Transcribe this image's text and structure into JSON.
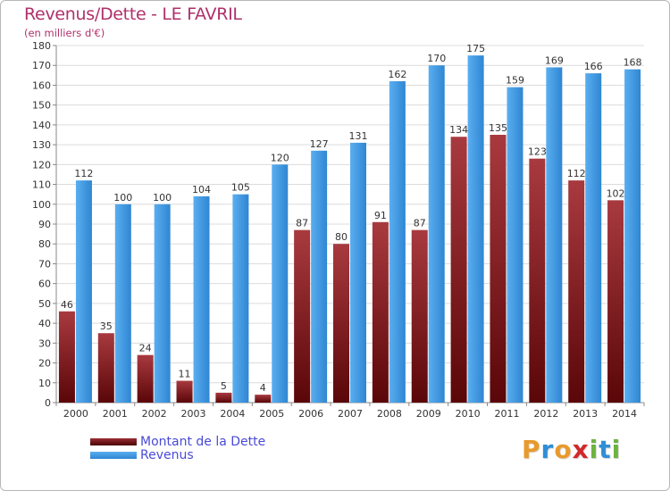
{
  "title": "Revenus/Dette - LE FAVRIL",
  "subtitle": "(en milliers d'€)",
  "colors": {
    "dette": "#7a1518",
    "revenus": "#3e9be3",
    "title": "#b0306b",
    "legend_text": "#4a4ad6"
  },
  "legend": [
    {
      "label": "Montant de la Dette",
      "color": "#7a1518"
    },
    {
      "label": "Revenus",
      "color": "#3e9be3"
    }
  ],
  "logo": {
    "letters": [
      "P",
      "r",
      "o",
      "x",
      "i",
      "t",
      "i"
    ],
    "colors": [
      "#e89a2c",
      "#2f8ed6",
      "#e89a2c",
      "#d12a2a",
      "#6cb33f",
      "#2f8ed6",
      "#6cb33f"
    ]
  },
  "chart_data": {
    "type": "bar",
    "title": "Revenus/Dette - LE FAVRIL",
    "subtitle": "(en milliers d'€)",
    "categories": [
      "2000",
      "2001",
      "2002",
      "2003",
      "2004",
      "2005",
      "2006",
      "2007",
      "2008",
      "2009",
      "2010",
      "2011",
      "2012",
      "2013",
      "2014"
    ],
    "series": [
      {
        "name": "Montant de la Dette",
        "values": [
          46,
          35,
          24,
          11,
          5,
          4,
          87,
          80,
          91,
          87,
          134,
          135,
          123,
          112,
          102
        ]
      },
      {
        "name": "Revenus",
        "values": [
          112,
          100,
          100,
          104,
          105,
          120,
          127,
          131,
          162,
          170,
          175,
          159,
          169,
          166,
          168
        ]
      }
    ],
    "ylim": [
      0,
      180
    ],
    "ytick_step": 10,
    "grid": true,
    "legend_position": "bottom-left"
  }
}
